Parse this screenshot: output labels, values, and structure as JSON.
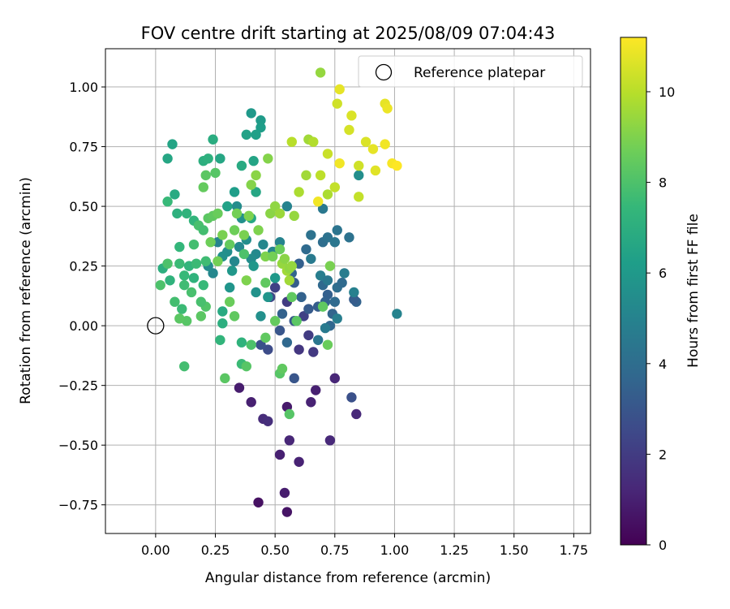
{
  "chart_data": {
    "type": "scatter",
    "title": "FOV centre drift starting at 2025/08/09 07:04:43",
    "xlabel": "Angular distance from reference (arcmin)",
    "ylabel": "Rotation from reference (arcmin)",
    "xlim": [
      -0.21,
      1.82
    ],
    "ylim": [
      -0.87,
      1.16
    ],
    "xticks": [
      0.0,
      0.25,
      0.5,
      0.75,
      1.0,
      1.25,
      1.5,
      1.75
    ],
    "xtick_labels": [
      "0.00",
      "0.25",
      "0.50",
      "0.75",
      "1.00",
      "1.25",
      "1.50",
      "1.75"
    ],
    "yticks": [
      -0.75,
      -0.5,
      -0.25,
      0.0,
      0.25,
      0.5,
      0.75,
      1.0
    ],
    "ytick_labels": [
      "−0.75",
      "−0.50",
      "−0.25",
      "0.00",
      "0.25",
      "0.50",
      "0.75",
      "1.00"
    ],
    "grid": true,
    "legend": {
      "placement": "top-right",
      "entries": [
        "Reference platepar"
      ]
    },
    "reference_point": {
      "x": 0.0,
      "y": 0.0
    },
    "colorbar": {
      "label": "Hours from first FF file",
      "range": [
        0,
        11.2
      ],
      "ticks": [
        0,
        2,
        4,
        6,
        8,
        10
      ],
      "tick_labels": [
        "0",
        "2",
        "4",
        "6",
        "8",
        "10"
      ],
      "colormap": "viridis"
    },
    "colormap_stops": [
      "#440154",
      "#482878",
      "#3e4989",
      "#31688e",
      "#26828e",
      "#1f9e89",
      "#35b779",
      "#6ece58",
      "#b5de2b",
      "#fde725"
    ],
    "points": [
      [
        0.43,
        -0.74,
        0.5
      ],
      [
        0.55,
        -0.78,
        0.6
      ],
      [
        0.54,
        -0.7,
        0.9
      ],
      [
        0.52,
        -0.54,
        1.0
      ],
      [
        0.6,
        -0.57,
        1.1
      ],
      [
        0.56,
        -0.48,
        1.2
      ],
      [
        0.73,
        -0.48,
        1.3
      ],
      [
        0.45,
        -0.39,
        1.4
      ],
      [
        0.47,
        -0.4,
        1.5
      ],
      [
        0.55,
        -0.34,
        0.8
      ],
      [
        0.4,
        -0.32,
        1.0
      ],
      [
        0.35,
        -0.26,
        0.9
      ],
      [
        0.67,
        -0.27,
        1.0
      ],
      [
        0.65,
        -0.32,
        1.1
      ],
      [
        0.75,
        -0.22,
        1.2
      ],
      [
        0.84,
        -0.37,
        1.3
      ],
      [
        0.82,
        -0.3,
        2.8
      ],
      [
        0.58,
        -0.22,
        3.0
      ],
      [
        0.6,
        -0.1,
        1.8
      ],
      [
        0.66,
        -0.11,
        1.9
      ],
      [
        0.64,
        -0.04,
        2.0
      ],
      [
        0.62,
        0.04,
        2.2
      ],
      [
        0.55,
        0.1,
        2.0
      ],
      [
        0.5,
        0.16,
        2.2
      ],
      [
        0.48,
        0.12,
        2.4
      ],
      [
        0.47,
        -0.1,
        2.6
      ],
      [
        0.44,
        -0.08,
        2.8
      ],
      [
        0.52,
        -0.02,
        3.0
      ],
      [
        0.58,
        0.02,
        3.1
      ],
      [
        0.64,
        0.07,
        3.2
      ],
      [
        0.68,
        0.08,
        3.3
      ],
      [
        0.72,
        0.13,
        3.4
      ],
      [
        0.71,
        0.1,
        3.5
      ],
      [
        0.74,
        0.05,
        3.6
      ],
      [
        0.73,
        0.0,
        3.7
      ],
      [
        0.7,
        0.17,
        3.8
      ],
      [
        0.75,
        0.1,
        3.9
      ],
      [
        0.76,
        0.16,
        4.0
      ],
      [
        0.78,
        0.18,
        3.9
      ],
      [
        0.84,
        0.1,
        3.5
      ],
      [
        0.83,
        0.11,
        3.3
      ],
      [
        0.53,
        0.05,
        3.5
      ],
      [
        0.55,
        -0.07,
        3.8
      ],
      [
        0.57,
        0.22,
        3.6
      ],
      [
        0.58,
        0.18,
        3.3
      ],
      [
        0.6,
        0.26,
        3.4
      ],
      [
        0.61,
        0.12,
        3.5
      ],
      [
        0.63,
        0.32,
        3.9
      ],
      [
        0.65,
        0.38,
        4.2
      ],
      [
        0.7,
        0.35,
        4.0
      ],
      [
        0.72,
        0.37,
        4.2
      ],
      [
        0.75,
        0.35,
        4.4
      ],
      [
        0.76,
        0.4,
        4.3
      ],
      [
        0.81,
        0.37,
        4.2
      ],
      [
        0.7,
        0.49,
        4.5
      ],
      [
        0.65,
        0.28,
        4.6
      ],
      [
        0.69,
        0.21,
        4.8
      ],
      [
        0.72,
        0.19,
        4.5
      ],
      [
        0.79,
        0.22,
        4.7
      ],
      [
        0.83,
        0.14,
        4.9
      ],
      [
        0.76,
        0.03,
        4.8
      ],
      [
        0.71,
        -0.01,
        4.6
      ],
      [
        0.68,
        -0.06,
        4.4
      ],
      [
        0.52,
        0.35,
        5.0
      ],
      [
        0.55,
        0.5,
        5.0
      ],
      [
        0.49,
        0.31,
        5.1
      ],
      [
        0.45,
        0.34,
        5.2
      ],
      [
        0.42,
        0.3,
        5.3
      ],
      [
        0.4,
        0.28,
        5.4
      ],
      [
        0.38,
        0.36,
        5.5
      ],
      [
        0.36,
        0.45,
        5.6
      ],
      [
        0.34,
        0.5,
        5.4
      ],
      [
        0.35,
        0.33,
        5.3
      ],
      [
        0.33,
        0.27,
        5.2
      ],
      [
        0.3,
        0.31,
        5.5
      ],
      [
        0.28,
        0.29,
        5.6
      ],
      [
        0.26,
        0.35,
        5.0
      ],
      [
        0.24,
        0.22,
        5.2
      ],
      [
        0.22,
        0.25,
        5.4
      ],
      [
        0.31,
        0.16,
        5.8
      ],
      [
        0.32,
        0.23,
        5.9
      ],
      [
        0.42,
        0.14,
        5.7
      ],
      [
        0.44,
        0.04,
        5.6
      ],
      [
        0.47,
        0.12,
        5.8
      ],
      [
        0.41,
        0.25,
        5.9
      ],
      [
        0.5,
        0.2,
        6.0
      ],
      [
        0.85,
        0.63,
        5.5
      ],
      [
        1.01,
        0.05,
        5.0
      ],
      [
        0.4,
        0.89,
        6.0
      ],
      [
        0.44,
        0.86,
        6.1
      ],
      [
        0.44,
        0.83,
        6.2
      ],
      [
        0.42,
        0.8,
        6.3
      ],
      [
        0.41,
        0.69,
        6.5
      ],
      [
        0.38,
        0.8,
        6.4
      ],
      [
        0.42,
        0.56,
        6.6
      ],
      [
        0.4,
        0.45,
        6.7
      ],
      [
        0.36,
        0.67,
        6.8
      ],
      [
        0.33,
        0.56,
        6.2
      ],
      [
        0.3,
        0.5,
        6.4
      ],
      [
        0.27,
        0.7,
        6.6
      ],
      [
        0.24,
        0.78,
        6.9
      ],
      [
        0.2,
        0.69,
        7.0
      ],
      [
        0.22,
        0.7,
        7.1
      ],
      [
        0.07,
        0.76,
        6.5
      ],
      [
        0.05,
        0.7,
        6.6
      ],
      [
        0.08,
        0.55,
        6.8
      ],
      [
        0.09,
        0.47,
        7.1
      ],
      [
        0.13,
        0.47,
        7.2
      ],
      [
        0.16,
        0.44,
        7.3
      ],
      [
        0.05,
        0.52,
        7.5
      ],
      [
        0.03,
        0.24,
        7.0
      ],
      [
        0.06,
        0.19,
        7.2
      ],
      [
        0.1,
        0.33,
        7.4
      ],
      [
        0.1,
        0.26,
        7.6
      ],
      [
        0.12,
        0.21,
        7.5
      ],
      [
        0.14,
        0.25,
        7.3
      ],
      [
        0.16,
        0.2,
        7.2
      ],
      [
        0.17,
        0.26,
        7.6
      ],
      [
        0.16,
        0.34,
        7.8
      ],
      [
        0.18,
        0.42,
        7.9
      ],
      [
        0.2,
        0.4,
        7.8
      ],
      [
        0.21,
        0.27,
        7.7
      ],
      [
        0.2,
        0.17,
        7.5
      ],
      [
        0.21,
        0.08,
        8.1
      ],
      [
        0.19,
        0.1,
        7.9
      ],
      [
        0.15,
        0.14,
        7.9
      ],
      [
        0.12,
        0.17,
        7.7
      ],
      [
        0.11,
        0.07,
        7.6
      ],
      [
        0.08,
        0.1,
        7.8
      ],
      [
        0.02,
        0.17,
        8.0
      ],
      [
        0.05,
        0.26,
        8.0
      ],
      [
        0.13,
        0.02,
        8.2
      ],
      [
        0.1,
        0.03,
        8.3
      ],
      [
        0.19,
        0.04,
        8.3
      ],
      [
        0.12,
        -0.17,
        7.8
      ],
      [
        0.27,
        -0.06,
        7.3
      ],
      [
        0.28,
        0.06,
        6.8
      ],
      [
        0.28,
        0.01,
        7.0
      ],
      [
        0.29,
        -0.22,
        8.3
      ],
      [
        0.36,
        -0.07,
        7.2
      ],
      [
        0.36,
        -0.16,
        7.6
      ],
      [
        0.4,
        -0.08,
        8.0
      ],
      [
        0.38,
        -0.17,
        8.2
      ],
      [
        0.46,
        -0.05,
        8.4
      ],
      [
        0.52,
        -0.2,
        8.2
      ],
      [
        0.53,
        -0.18,
        8.4
      ],
      [
        0.56,
        -0.37,
        8.2
      ],
      [
        0.59,
        0.02,
        8.3
      ],
      [
        0.57,
        0.12,
        8.4
      ],
      [
        0.5,
        0.02,
        8.5
      ],
      [
        0.72,
        -0.08,
        8.6
      ],
      [
        0.7,
        0.08,
        8.4
      ],
      [
        0.73,
        0.25,
        8.9
      ],
      [
        0.22,
        0.45,
        8.3
      ],
      [
        0.24,
        0.46,
        8.4
      ],
      [
        0.2,
        0.58,
        8.5
      ],
      [
        0.21,
        0.63,
        8.3
      ],
      [
        0.25,
        0.64,
        8.2
      ],
      [
        0.26,
        0.47,
        8.6
      ],
      [
        0.23,
        0.35,
        8.7
      ],
      [
        0.26,
        0.27,
        8.8
      ],
      [
        0.28,
        0.38,
        8.9
      ],
      [
        0.31,
        0.34,
        8.5
      ],
      [
        0.33,
        0.4,
        8.7
      ],
      [
        0.34,
        0.47,
        8.8
      ],
      [
        0.37,
        0.38,
        8.9
      ],
      [
        0.39,
        0.46,
        9.0
      ],
      [
        0.4,
        0.59,
        9.1
      ],
      [
        0.42,
        0.63,
        9.2
      ],
      [
        0.43,
        0.4,
        9.0
      ],
      [
        0.46,
        0.29,
        9.0
      ],
      [
        0.47,
        0.7,
        9.1
      ],
      [
        0.48,
        0.47,
        9.2
      ],
      [
        0.5,
        0.5,
        9.3
      ],
      [
        0.52,
        0.47,
        9.5
      ],
      [
        0.53,
        0.26,
        9.4
      ],
      [
        0.54,
        0.28,
        9.2
      ],
      [
        0.55,
        0.23,
        9.6
      ],
      [
        0.56,
        0.24,
        9.3
      ],
      [
        0.57,
        0.25,
        9.4
      ],
      [
        0.56,
        0.19,
        9.6
      ],
      [
        0.58,
        0.46,
        9.4
      ],
      [
        0.6,
        0.56,
        9.8
      ],
      [
        0.63,
        0.63,
        9.6
      ],
      [
        0.64,
        0.78,
        9.6
      ],
      [
        0.66,
        0.77,
        9.9
      ],
      [
        0.69,
        0.63,
        10.1
      ],
      [
        0.72,
        0.55,
        9.8
      ],
      [
        0.75,
        0.58,
        10.2
      ],
      [
        0.57,
        0.77,
        10.0
      ],
      [
        0.72,
        0.72,
        10.3
      ],
      [
        0.76,
        0.93,
        10.4
      ],
      [
        0.81,
        0.82,
        10.5
      ],
      [
        0.82,
        0.88,
        10.6
      ],
      [
        0.69,
        1.06,
        9.4
      ],
      [
        0.77,
        0.99,
        10.8
      ],
      [
        0.85,
        0.67,
        10.4
      ],
      [
        0.88,
        0.77,
        10.6
      ],
      [
        0.91,
        0.74,
        10.8
      ],
      [
        0.92,
        0.65,
        10.7
      ],
      [
        0.85,
        0.54,
        10.2
      ],
      [
        0.96,
        0.93,
        10.8
      ],
      [
        0.97,
        0.91,
        10.9
      ],
      [
        0.96,
        0.76,
        11.0
      ],
      [
        0.99,
        0.68,
        11.1
      ],
      [
        1.01,
        0.67,
        11.2
      ],
      [
        0.68,
        0.52,
        11.0
      ],
      [
        0.77,
        0.68,
        11.0
      ],
      [
        0.37,
        0.3,
        8.0
      ],
      [
        0.31,
        0.1,
        8.6
      ],
      [
        0.38,
        0.19,
        9.0
      ],
      [
        0.46,
        0.18,
        8.4
      ],
      [
        0.33,
        0.04,
        8.4
      ],
      [
        0.49,
        0.29,
        8.8
      ],
      [
        0.52,
        0.32,
        8.6
      ]
    ]
  }
}
